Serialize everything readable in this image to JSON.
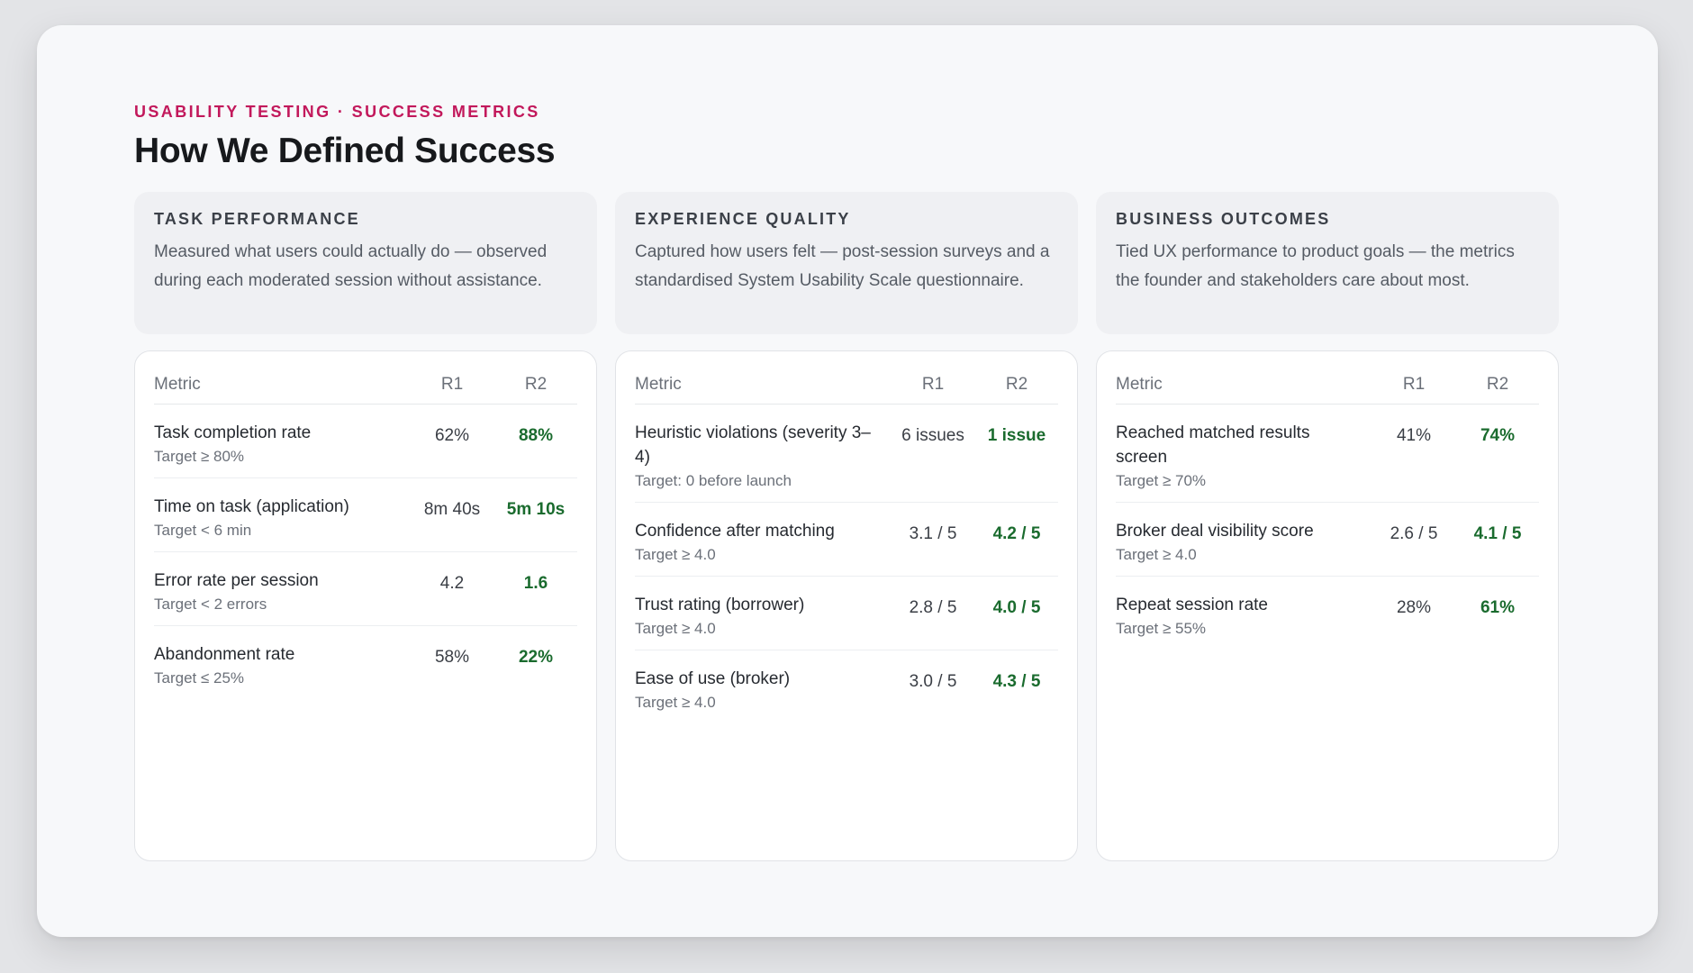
{
  "eyebrow": "USABILITY TESTING · SUCCESS METRICS",
  "title": "How We Defined Success",
  "colors": {
    "accent": "#c2185b",
    "improved": "#1a6b2e"
  },
  "columns": [
    {
      "heading": "TASK PERFORMANCE",
      "description": "Measured what users could actually do — observed during each moderated session without assistance.",
      "headers": {
        "metric": "Metric",
        "r1": "R1",
        "r2": "R2"
      },
      "rows": [
        {
          "metric": "Task completion rate",
          "target": "Target ≥ 80%",
          "r1": "62%",
          "r2": "88%"
        },
        {
          "metric": "Time on task (application)",
          "target": "Target < 6 min",
          "r1": "8m 40s",
          "r2": "5m 10s"
        },
        {
          "metric": "Error rate per session",
          "target": "Target < 2 errors",
          "r1": "4.2",
          "r2": "1.6"
        },
        {
          "metric": "Abandonment rate",
          "target": "Target ≤ 25%",
          "r1": "58%",
          "r2": "22%"
        }
      ]
    },
    {
      "heading": "EXPERIENCE QUALITY",
      "description": "Captured how users felt — post-session surveys and a standardised System Usability Scale questionnaire.",
      "headers": {
        "metric": "Metric",
        "r1": "R1",
        "r2": "R2"
      },
      "rows": [
        {
          "metric": "Heuristic violations (severity 3–4)",
          "target": "Target: 0 before launch",
          "r1": "6 issues",
          "r2": "1 issue"
        },
        {
          "metric": "Confidence after matching",
          "target": "Target ≥ 4.0",
          "r1": "3.1 / 5",
          "r2": "4.2 / 5"
        },
        {
          "metric": "Trust rating (borrower)",
          "target": "Target ≥ 4.0",
          "r1": "2.8 / 5",
          "r2": "4.0 / 5"
        },
        {
          "metric": "Ease of use (broker)",
          "target": "Target ≥ 4.0",
          "r1": "3.0 / 5",
          "r2": "4.3 / 5"
        }
      ]
    },
    {
      "heading": "BUSINESS OUTCOMES",
      "description": "Tied UX performance to product goals — the metrics the founder and stakeholders care about most.",
      "headers": {
        "metric": "Metric",
        "r1": "R1",
        "r2": "R2"
      },
      "rows": [
        {
          "metric": "Reached matched results screen",
          "target": "Target ≥ 70%",
          "r1": "41%",
          "r2": "74%"
        },
        {
          "metric": "Broker deal visibility score",
          "target": "Target ≥ 4.0",
          "r1": "2.6 / 5",
          "r2": "4.1 / 5"
        },
        {
          "metric": "Repeat session rate",
          "target": "Target ≥ 55%",
          "r1": "28%",
          "r2": "61%"
        }
      ]
    }
  ]
}
